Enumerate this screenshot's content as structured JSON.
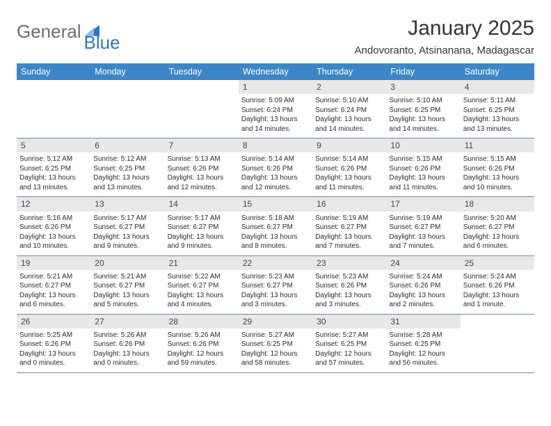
{
  "brand": {
    "part1": "General",
    "part2": "Blue"
  },
  "title": "January 2025",
  "location": "Andovoranto, Atsinanana, Madagascar",
  "colors": {
    "header_bg": "#3b86c7",
    "header_text": "#ffffff",
    "daynum_bg": "#e8e8e8",
    "week_border": "#6a89a8",
    "brand_general": "#6d6d6d",
    "brand_blue": "#2b78c5"
  },
  "day_names": [
    "Sunday",
    "Monday",
    "Tuesday",
    "Wednesday",
    "Thursday",
    "Friday",
    "Saturday"
  ],
  "weeks": [
    [
      {
        "day": "",
        "sunrise": "",
        "sunset": "",
        "daylight1": "",
        "daylight2": ""
      },
      {
        "day": "",
        "sunrise": "",
        "sunset": "",
        "daylight1": "",
        "daylight2": ""
      },
      {
        "day": "",
        "sunrise": "",
        "sunset": "",
        "daylight1": "",
        "daylight2": ""
      },
      {
        "day": "1",
        "sunrise": "Sunrise: 5:09 AM",
        "sunset": "Sunset: 6:24 PM",
        "daylight1": "Daylight: 13 hours",
        "daylight2": "and 14 minutes."
      },
      {
        "day": "2",
        "sunrise": "Sunrise: 5:10 AM",
        "sunset": "Sunset: 6:24 PM",
        "daylight1": "Daylight: 13 hours",
        "daylight2": "and 14 minutes."
      },
      {
        "day": "3",
        "sunrise": "Sunrise: 5:10 AM",
        "sunset": "Sunset: 6:25 PM",
        "daylight1": "Daylight: 13 hours",
        "daylight2": "and 14 minutes."
      },
      {
        "day": "4",
        "sunrise": "Sunrise: 5:11 AM",
        "sunset": "Sunset: 6:25 PM",
        "daylight1": "Daylight: 13 hours",
        "daylight2": "and 13 minutes."
      }
    ],
    [
      {
        "day": "5",
        "sunrise": "Sunrise: 5:12 AM",
        "sunset": "Sunset: 6:25 PM",
        "daylight1": "Daylight: 13 hours",
        "daylight2": "and 13 minutes."
      },
      {
        "day": "6",
        "sunrise": "Sunrise: 5:12 AM",
        "sunset": "Sunset: 6:25 PM",
        "daylight1": "Daylight: 13 hours",
        "daylight2": "and 13 minutes."
      },
      {
        "day": "7",
        "sunrise": "Sunrise: 5:13 AM",
        "sunset": "Sunset: 6:26 PM",
        "daylight1": "Daylight: 13 hours",
        "daylight2": "and 12 minutes."
      },
      {
        "day": "8",
        "sunrise": "Sunrise: 5:14 AM",
        "sunset": "Sunset: 6:26 PM",
        "daylight1": "Daylight: 13 hours",
        "daylight2": "and 12 minutes."
      },
      {
        "day": "9",
        "sunrise": "Sunrise: 5:14 AM",
        "sunset": "Sunset: 6:26 PM",
        "daylight1": "Daylight: 13 hours",
        "daylight2": "and 11 minutes."
      },
      {
        "day": "10",
        "sunrise": "Sunrise: 5:15 AM",
        "sunset": "Sunset: 6:26 PM",
        "daylight1": "Daylight: 13 hours",
        "daylight2": "and 11 minutes."
      },
      {
        "day": "11",
        "sunrise": "Sunrise: 5:15 AM",
        "sunset": "Sunset: 6:26 PM",
        "daylight1": "Daylight: 13 hours",
        "daylight2": "and 10 minutes."
      }
    ],
    [
      {
        "day": "12",
        "sunrise": "Sunrise: 5:16 AM",
        "sunset": "Sunset: 6:26 PM",
        "daylight1": "Daylight: 13 hours",
        "daylight2": "and 10 minutes."
      },
      {
        "day": "13",
        "sunrise": "Sunrise: 5:17 AM",
        "sunset": "Sunset: 6:27 PM",
        "daylight1": "Daylight: 13 hours",
        "daylight2": "and 9 minutes."
      },
      {
        "day": "14",
        "sunrise": "Sunrise: 5:17 AM",
        "sunset": "Sunset: 6:27 PM",
        "daylight1": "Daylight: 13 hours",
        "daylight2": "and 9 minutes."
      },
      {
        "day": "15",
        "sunrise": "Sunrise: 5:18 AM",
        "sunset": "Sunset: 6:27 PM",
        "daylight1": "Daylight: 13 hours",
        "daylight2": "and 8 minutes."
      },
      {
        "day": "16",
        "sunrise": "Sunrise: 5:19 AM",
        "sunset": "Sunset: 6:27 PM",
        "daylight1": "Daylight: 13 hours",
        "daylight2": "and 7 minutes."
      },
      {
        "day": "17",
        "sunrise": "Sunrise: 5:19 AM",
        "sunset": "Sunset: 6:27 PM",
        "daylight1": "Daylight: 13 hours",
        "daylight2": "and 7 minutes."
      },
      {
        "day": "18",
        "sunrise": "Sunrise: 5:20 AM",
        "sunset": "Sunset: 6:27 PM",
        "daylight1": "Daylight: 13 hours",
        "daylight2": "and 6 minutes."
      }
    ],
    [
      {
        "day": "19",
        "sunrise": "Sunrise: 5:21 AM",
        "sunset": "Sunset: 6:27 PM",
        "daylight1": "Daylight: 13 hours",
        "daylight2": "and 6 minutes."
      },
      {
        "day": "20",
        "sunrise": "Sunrise: 5:21 AM",
        "sunset": "Sunset: 6:27 PM",
        "daylight1": "Daylight: 13 hours",
        "daylight2": "and 5 minutes."
      },
      {
        "day": "21",
        "sunrise": "Sunrise: 5:22 AM",
        "sunset": "Sunset: 6:27 PM",
        "daylight1": "Daylight: 13 hours",
        "daylight2": "and 4 minutes."
      },
      {
        "day": "22",
        "sunrise": "Sunrise: 5:23 AM",
        "sunset": "Sunset: 6:27 PM",
        "daylight1": "Daylight: 13 hours",
        "daylight2": "and 3 minutes."
      },
      {
        "day": "23",
        "sunrise": "Sunrise: 5:23 AM",
        "sunset": "Sunset: 6:26 PM",
        "daylight1": "Daylight: 13 hours",
        "daylight2": "and 3 minutes."
      },
      {
        "day": "24",
        "sunrise": "Sunrise: 5:24 AM",
        "sunset": "Sunset: 6:26 PM",
        "daylight1": "Daylight: 13 hours",
        "daylight2": "and 2 minutes."
      },
      {
        "day": "25",
        "sunrise": "Sunrise: 5:24 AM",
        "sunset": "Sunset: 6:26 PM",
        "daylight1": "Daylight: 13 hours",
        "daylight2": "and 1 minute."
      }
    ],
    [
      {
        "day": "26",
        "sunrise": "Sunrise: 5:25 AM",
        "sunset": "Sunset: 6:26 PM",
        "daylight1": "Daylight: 13 hours",
        "daylight2": "and 0 minutes."
      },
      {
        "day": "27",
        "sunrise": "Sunrise: 5:26 AM",
        "sunset": "Sunset: 6:26 PM",
        "daylight1": "Daylight: 13 hours",
        "daylight2": "and 0 minutes."
      },
      {
        "day": "28",
        "sunrise": "Sunrise: 5:26 AM",
        "sunset": "Sunset: 6:26 PM",
        "daylight1": "Daylight: 12 hours",
        "daylight2": "and 59 minutes."
      },
      {
        "day": "29",
        "sunrise": "Sunrise: 5:27 AM",
        "sunset": "Sunset: 6:25 PM",
        "daylight1": "Daylight: 12 hours",
        "daylight2": "and 58 minutes."
      },
      {
        "day": "30",
        "sunrise": "Sunrise: 5:27 AM",
        "sunset": "Sunset: 6:25 PM",
        "daylight1": "Daylight: 12 hours",
        "daylight2": "and 57 minutes."
      },
      {
        "day": "31",
        "sunrise": "Sunrise: 5:28 AM",
        "sunset": "Sunset: 6:25 PM",
        "daylight1": "Daylight: 12 hours",
        "daylight2": "and 56 minutes."
      },
      {
        "day": "",
        "sunrise": "",
        "sunset": "",
        "daylight1": "",
        "daylight2": ""
      }
    ]
  ]
}
